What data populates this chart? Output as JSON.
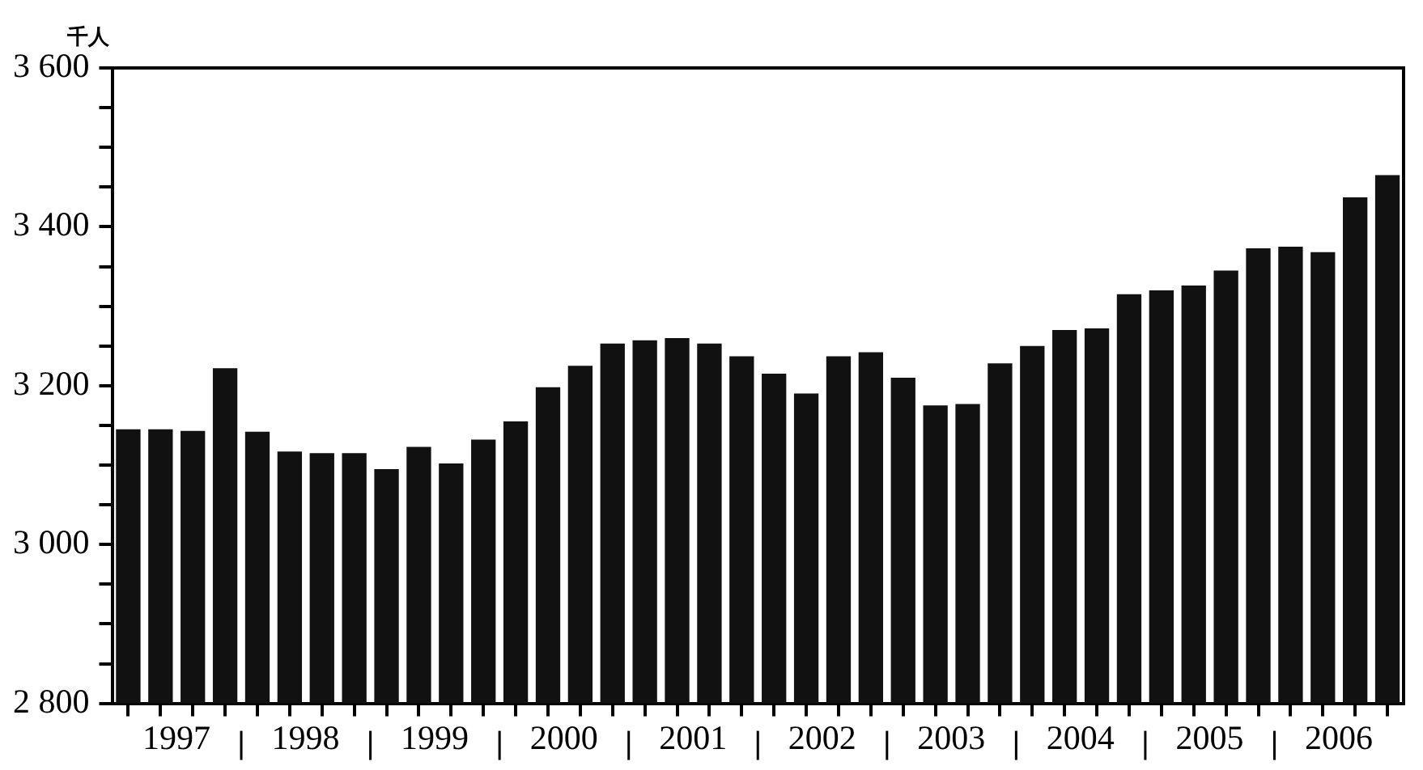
{
  "chart_data": {
    "type": "bar",
    "ylabel": "千人",
    "categories": [
      null,
      "1997",
      null,
      null,
      null,
      "1998",
      null,
      null,
      null,
      "1999",
      null,
      null,
      null,
      "2000",
      null,
      null,
      null,
      "2001",
      null,
      null,
      null,
      "2002",
      null,
      null,
      null,
      "2003",
      null,
      null,
      null,
      "2004",
      null,
      null,
      null,
      "2005",
      null,
      null,
      null,
      "2006",
      null,
      null
    ],
    "values": [
      3145,
      3145,
      3143,
      3222,
      3142,
      3117,
      3115,
      3115,
      3095,
      3123,
      3102,
      3132,
      3155,
      3198,
      3225,
      3253,
      3257,
      3260,
      3253,
      3237,
      3215,
      3190,
      3237,
      3242,
      3210,
      3175,
      3177,
      3228,
      3250,
      3270,
      3272,
      3315,
      3320,
      3326,
      3345,
      3373,
      3375,
      3368,
      3437,
      3465
    ],
    "color": "#111111",
    "ylim": [
      2800,
      3600
    ],
    "yticks": [
      {
        "value": 2800,
        "label": "2 800"
      },
      {
        "value": 2850,
        "label": null
      },
      {
        "value": 2900,
        "label": null
      },
      {
        "value": 2950,
        "label": null
      },
      {
        "value": 3000,
        "label": "3 000"
      },
      {
        "value": 3050,
        "label": null
      },
      {
        "value": 3100,
        "label": null
      },
      {
        "value": 3150,
        "label": null
      },
      {
        "value": 3200,
        "label": "3 200"
      },
      {
        "value": 3250,
        "label": null
      },
      {
        "value": 3300,
        "label": null
      },
      {
        "value": 3350,
        "label": null
      },
      {
        "value": 3400,
        "label": "3 400"
      },
      {
        "value": 3450,
        "label": null
      },
      {
        "value": 3500,
        "label": null
      },
      {
        "value": 3550,
        "label": null
      },
      {
        "value": 3600,
        "label": "3 600"
      }
    ],
    "grid": false,
    "legend": false
  }
}
